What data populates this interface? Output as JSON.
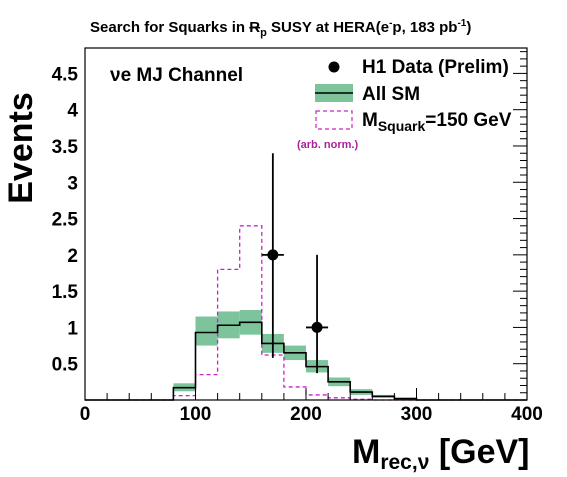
{
  "chart_data": {
    "type": "histogram",
    "title": "Search for Squarks in R̸p SUSY at HERA(e⁻p, 183 pb⁻¹)",
    "title_parts": {
      "prefix": "Search for Squarks in ",
      "rp_symbol": "R",
      "rp_sub": "p",
      "middle": " SUSY at HERA(e",
      "e_sup": "-",
      "lumi": "p, 183 pb",
      "lumi_sup": "-1",
      "close": ")"
    },
    "channel_label": "νe MJ Channel",
    "ylabel": "Events",
    "xlabel": "M",
    "xlabel_sub": "rec,ν",
    "xlabel_unit": " [GeV]",
    "xlim": [
      0,
      400
    ],
    "ylim": [
      0,
      4.85
    ],
    "x_ticks": [
      0,
      100,
      200,
      300,
      400
    ],
    "x_tick_labels": [
      "0",
      "100",
      "200",
      "300",
      "400"
    ],
    "y_ticks": [
      0.5,
      1,
      1.5,
      2,
      2.5,
      3,
      3.5,
      4,
      4.5
    ],
    "y_tick_labels": [
      "0.5",
      "1",
      "1.5",
      "2",
      "2.5",
      "3",
      "3.5",
      "4",
      "4.5"
    ],
    "bin_edges": [
      0,
      20,
      40,
      60,
      80,
      100,
      120,
      140,
      160,
      180,
      200,
      220,
      240,
      260,
      280,
      300,
      320,
      340,
      360,
      380,
      400
    ],
    "sm_values": [
      0.0,
      0.0,
      0.0,
      0.0,
      0.17,
      0.93,
      1.03,
      1.07,
      0.78,
      0.65,
      0.46,
      0.25,
      0.11,
      0.05,
      0.02,
      0.0,
      0.0,
      0.0,
      0.0,
      0.0
    ],
    "sm_band_low": [
      0.0,
      0.0,
      0.0,
      0.0,
      0.12,
      0.75,
      0.85,
      0.9,
      0.65,
      0.55,
      0.38,
      0.19,
      0.07,
      0.03,
      0.01,
      0.0,
      0.0,
      0.0,
      0.0,
      0.0
    ],
    "sm_band_high": [
      0.0,
      0.0,
      0.0,
      0.0,
      0.23,
      1.15,
      1.22,
      1.24,
      0.91,
      0.75,
      0.55,
      0.31,
      0.15,
      0.07,
      0.03,
      0.0,
      0.0,
      0.0,
      0.0,
      0.0
    ],
    "signal_values": [
      0.0,
      0.0,
      0.0,
      0.0,
      0.06,
      0.35,
      1.8,
      2.4,
      0.62,
      0.18,
      0.07,
      0.03,
      0.01,
      0.0,
      0.0,
      0.0,
      0.0,
      0.0,
      0.0,
      0.0
    ],
    "data_points": [
      {
        "x": 170,
        "y": 2,
        "yerr_low": 1.42,
        "yerr_high": 1.4,
        "xerr": 10
      },
      {
        "x": 210,
        "y": 1,
        "yerr_low": 0.63,
        "yerr_high": 1.0,
        "xerr": 10
      }
    ],
    "legend": {
      "placement": "top-right",
      "entries": [
        {
          "label": "H1 Data (Prelim)",
          "kind": "data"
        },
        {
          "label": "All SM",
          "kind": "sm"
        },
        {
          "label_main": "M",
          "label_sub": "Squark",
          "label_rest": "=150 GeV",
          "kind": "signal"
        }
      ],
      "note": "(arb. norm.)"
    },
    "colors": {
      "sm_band": "#7dc49d",
      "sm_line": "#000000",
      "signal": "#cc22cc",
      "note": "#aa2299",
      "data": "#000000"
    },
    "grid": false
  }
}
